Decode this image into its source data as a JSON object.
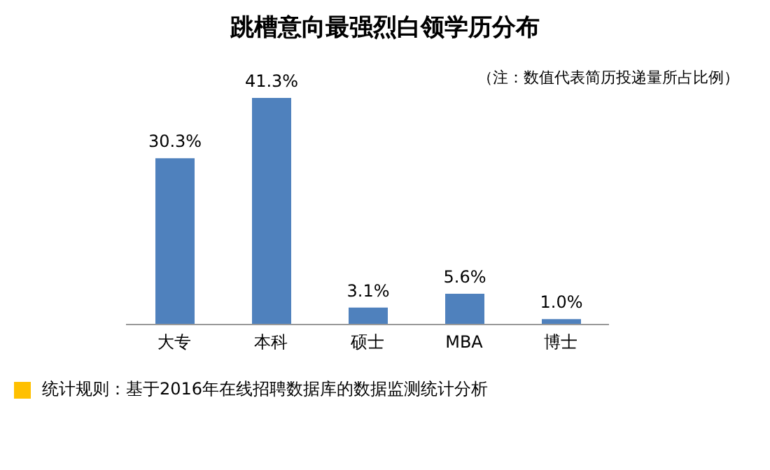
{
  "chart_data": {
    "type": "bar",
    "title": "跳槽意向最强烈白领学历分布",
    "subtitle": "（注：数值代表简历投递量所占比例）",
    "categories": [
      "大专",
      "本科",
      "硕士",
      "MBA",
      "博士"
    ],
    "values": [
      30.3,
      41.3,
      3.1,
      5.6,
      1.0
    ],
    "value_labels": [
      "30.3%",
      "41.3%",
      "3.1%",
      "5.6%",
      "1.0%"
    ],
    "color": "#4f81bd",
    "tick_labels": "x",
    "grid": false,
    "legend": false,
    "annotations": [
      "统计规则：基于2016年在线招聘数据库的数据监测统计分析"
    ]
  }
}
